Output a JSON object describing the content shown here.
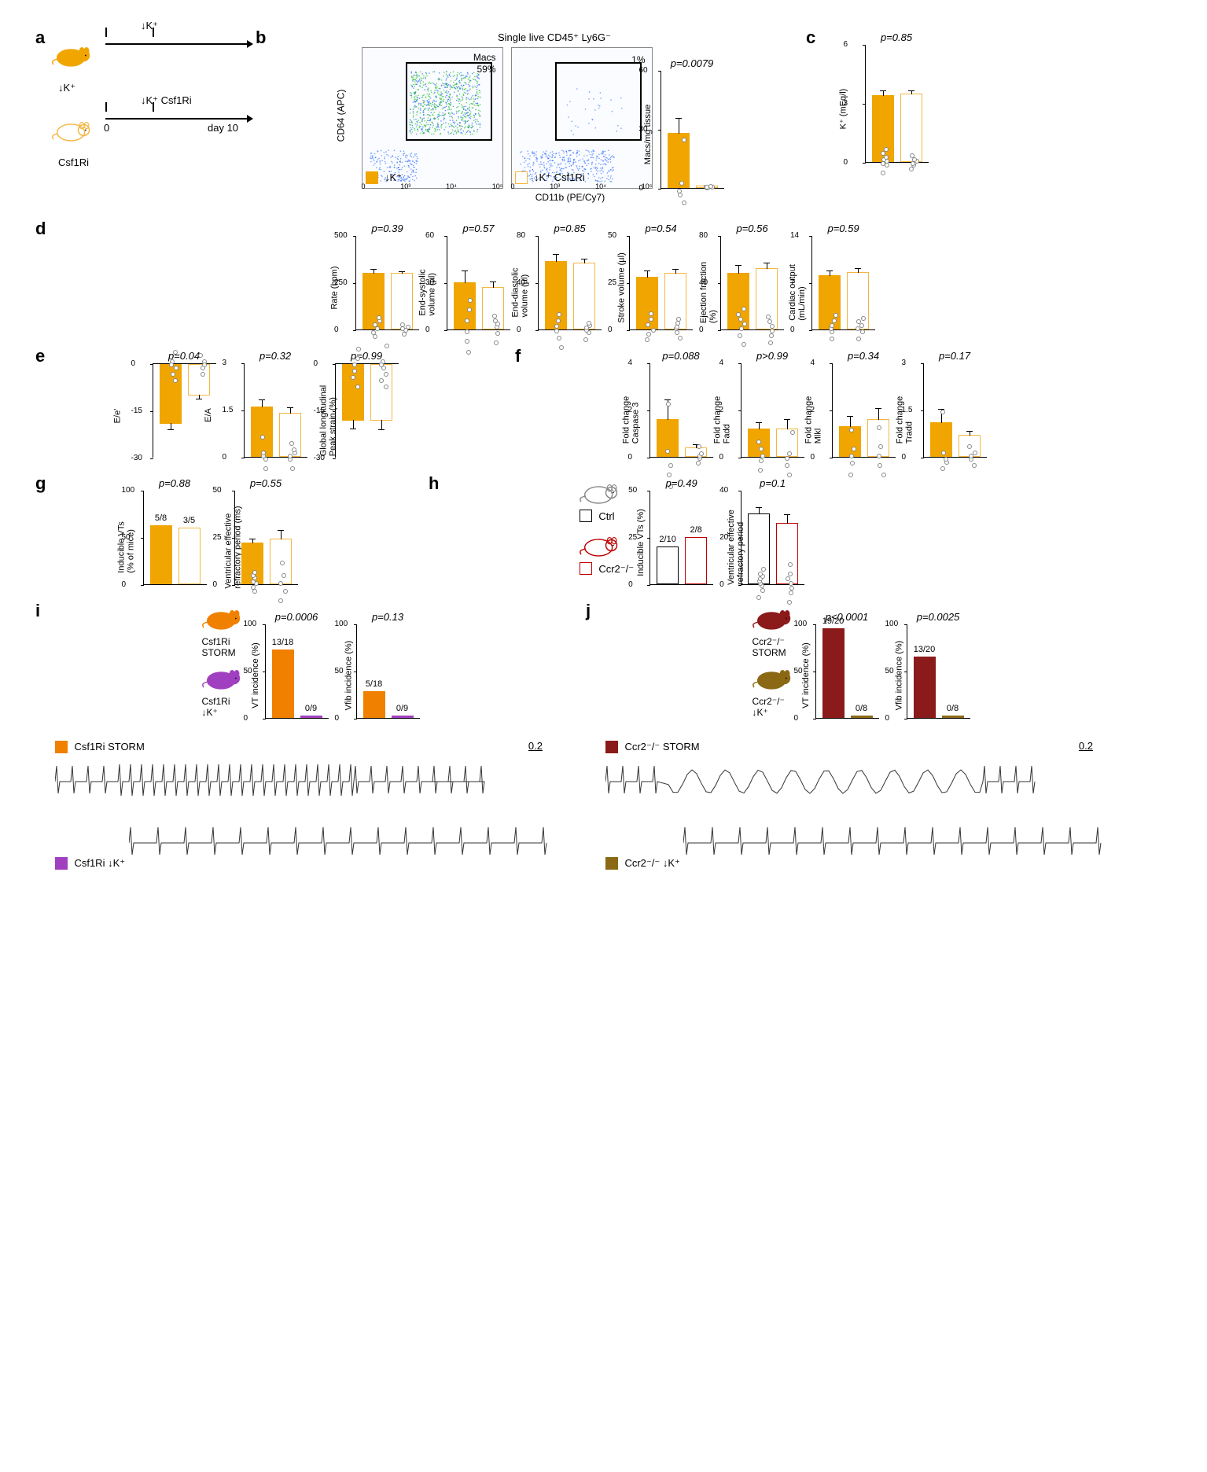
{
  "panels": {
    "a": {
      "label": "a",
      "mice": [
        {
          "color": "#f0a500",
          "treatment_arrow": "↓K⁺",
          "label_below": "↓K⁺"
        },
        {
          "color": "#f5b640",
          "outline": true,
          "treatment_arrow": "↓K⁺ Csf1Ri",
          "label_below": "Csf1Ri"
        }
      ],
      "timeline": {
        "start": "0",
        "end": "day 10"
      }
    },
    "b": {
      "label": "b",
      "title": "Single live CD45⁺ Ly6G⁻",
      "plots": [
        {
          "gate_pct": "59%",
          "gate_label": "Macs",
          "legend_color": "#f0a500",
          "legend_filled": true,
          "legend_text": "↓K⁺"
        },
        {
          "gate_pct": "1%",
          "legend_color": "#f5b640",
          "legend_filled": false,
          "legend_text": "↓K⁺ Csf1Ri"
        }
      ],
      "x_axis": "CD11b (PE/Cy7)",
      "y_axis": "CD64 (APC)",
      "ticks": [
        "0",
        "10³",
        "10⁴",
        "10⁵"
      ],
      "bar_chart": {
        "p": "p=0.0079",
        "ylabel": "Macs/mg tissue",
        "ymax": 60,
        "ticks": [
          0,
          30,
          60
        ],
        "bars": [
          {
            "value": 28,
            "color": "#f0a500",
            "filled": true,
            "points": [
              20,
              24,
              26,
              30,
              52
            ]
          },
          {
            "value": 1,
            "color": "#f5b640",
            "filled": false,
            "points": [
              0.5,
              0.8,
              1,
              1.2,
              1.5
            ]
          }
        ]
      }
    },
    "c": {
      "label": "c",
      "p": "p=0.85",
      "ylabel": "K⁺ (mEq/l)",
      "ymax": 6,
      "ticks": [
        0,
        3,
        6
      ],
      "bars": [
        {
          "value": 3.4,
          "color": "#f0a500",
          "filled": true,
          "points": [
            2.8,
            3.2,
            3.3,
            3.4,
            3.5,
            3.6,
            3.8,
            4.0
          ]
        },
        {
          "value": 3.5,
          "color": "#f5b640",
          "filled": false,
          "points": [
            3.1,
            3.3,
            3.4,
            3.5,
            3.6,
            3.8
          ]
        }
      ]
    },
    "d": {
      "label": "d",
      "charts": [
        {
          "p": "p=0.39",
          "ylabel": "Rate (bpm)",
          "ymax": 500,
          "ticks": [
            0,
            250,
            500
          ],
          "bars": [
            {
              "value": 300,
              "color": "#f0a500",
              "filled": true,
              "points": [
                260,
                280,
                300,
                320,
                340,
                360
              ]
            },
            {
              "value": 300,
              "color": "#f5b640",
              "filled": false,
              "points": [
                270,
                290,
                300,
                310,
                320
              ]
            }
          ]
        },
        {
          "p": "p=0.57",
          "ylabel": "End-systolic\nvolume (µl)",
          "ymax": 60,
          "ticks": [
            0,
            30,
            60
          ],
          "bars": [
            {
              "value": 30,
              "color": "#f0a500",
              "filled": true,
              "points": [
                15,
                22,
                28,
                35,
                42,
                48
              ]
            },
            {
              "value": 27,
              "color": "#f5b640",
              "filled": false,
              "points": [
                18,
                24,
                28,
                30,
                32,
                35
              ]
            }
          ]
        },
        {
          "p": "p=0.85",
          "ylabel": "End-diastolic\nvolume (µl)",
          "ymax": 80,
          "ticks": [
            0,
            40,
            80
          ],
          "bars": [
            {
              "value": 58,
              "color": "#f0a500",
              "filled": true,
              "points": [
                42,
                50,
                56,
                60,
                65,
                70
              ]
            },
            {
              "value": 57,
              "color": "#f5b640",
              "filled": false,
              "points": [
                48,
                54,
                56,
                58,
                60,
                62
              ]
            }
          ]
        },
        {
          "p": "p=0.54",
          "ylabel": "Stroke volume (µl)",
          "ymax": 50,
          "ticks": [
            0,
            25,
            50
          ],
          "bars": [
            {
              "value": 28,
              "color": "#f0a500",
              "filled": true,
              "points": [
                22,
                25,
                27,
                30,
                33,
                36
              ]
            },
            {
              "value": 30,
              "color": "#f5b640",
              "filled": false,
              "points": [
                25,
                28,
                30,
                31,
                33,
                35
              ]
            }
          ]
        },
        {
          "p": "p=0.56",
          "ylabel": "Ejection fraction\n(%)",
          "ymax": 80,
          "ticks": [
            0,
            40,
            80
          ],
          "bars": [
            {
              "value": 48,
              "color": "#f0a500",
              "filled": true,
              "points": [
                35,
                42,
                48,
                52,
                56,
                60,
                65
              ]
            },
            {
              "value": 52,
              "color": "#f5b640",
              "filled": false,
              "points": [
                40,
                46,
                50,
                54,
                58,
                62
              ]
            }
          ]
        },
        {
          "p": "p=0.59",
          "ylabel": "Cardiac output\n(mL/min)",
          "ymax": 14,
          "ticks": [
            0,
            7,
            14
          ],
          "bars": [
            {
              "value": 8,
              "color": "#f0a500",
              "filled": true,
              "points": [
                6.5,
                7.5,
                8,
                8.5,
                9.2,
                10
              ]
            },
            {
              "value": 8.5,
              "color": "#f5b640",
              "filled": false,
              "points": [
                7,
                8,
                8.5,
                9,
                9.5,
                10
              ]
            }
          ]
        }
      ]
    },
    "e": {
      "label": "e",
      "charts": [
        {
          "p": "p=0.04",
          "ylabel": "E/e'",
          "ymin": -30,
          "ymax": 0,
          "ticks": [
            0,
            -15,
            -30
          ],
          "inverted": true,
          "bars": [
            {
              "value": -19,
              "color": "#f0a500",
              "filled": true,
              "points": [
                -15,
                -18,
                -19,
                -20,
                -22,
                -24
              ]
            },
            {
              "value": -10,
              "color": "#f5b640",
              "filled": false,
              "points": [
                -7,
                -9,
                -10,
                -11,
                -13
              ]
            }
          ]
        },
        {
          "p": "p=0.32",
          "ylabel": "E/A",
          "ymax": 3.0,
          "ticks": [
            0,
            1.5,
            3.0
          ],
          "bars": [
            {
              "value": 1.6,
              "color": "#f0a500",
              "filled": true,
              "points": [
                1.2,
                1.5,
                1.6,
                1.7,
                2.2
              ]
            },
            {
              "value": 1.4,
              "color": "#f5b640",
              "filled": false,
              "points": [
                1.0,
                1.3,
                1.4,
                1.5,
                1.6,
                1.8
              ]
            }
          ]
        },
        {
          "p": "p=0.99",
          "ylabel": "Global longitudinal\nPeak strain (%)",
          "ymin": -30,
          "ymax": 0,
          "ticks": [
            0,
            -15,
            -30
          ],
          "inverted": true,
          "bars": [
            {
              "value": -18,
              "color": "#f0a500",
              "filled": true,
              "points": [
                -13,
                -16,
                -18,
                -20,
                -22,
                -25
              ]
            },
            {
              "value": -18,
              "color": "#f5b640",
              "filled": false,
              "points": [
                -12,
                -17,
                -18,
                -19,
                -21,
                -23,
                -25
              ]
            }
          ]
        }
      ]
    },
    "f": {
      "label": "f",
      "charts": [
        {
          "p": "p=0.088",
          "ylabel": "Fold change\nCaspase 3",
          "ymax": 4,
          "ticks": [
            0,
            2,
            4
          ],
          "bars": [
            {
              "value": 1.6,
              "color": "#f0a500",
              "filled": true,
              "points": [
                0.3,
                0.8,
                1.2,
                1.8,
                3.8
              ]
            },
            {
              "value": 0.4,
              "color": "#f5b640",
              "filled": false,
              "points": [
                0.1,
                0.3,
                0.4,
                0.5,
                0.8
              ]
            }
          ]
        },
        {
          "p": "p>0.99",
          "ylabel": "Fold change\nFadd",
          "ymax": 4,
          "ticks": [
            0,
            2,
            4
          ],
          "bars": [
            {
              "value": 1.2,
              "color": "#f0a500",
              "filled": true,
              "points": [
                0.6,
                1.0,
                1.2,
                1.5,
                1.8
              ]
            },
            {
              "value": 1.2,
              "color": "#f5b640",
              "filled": false,
              "points": [
                0.4,
                0.8,
                1.1,
                1.3,
                2.2
              ]
            }
          ]
        },
        {
          "p": "p=0.34",
          "ylabel": "Fold change\nMlkl",
          "ymax": 4,
          "ticks": [
            0,
            2,
            4
          ],
          "bars": [
            {
              "value": 1.3,
              "color": "#f0a500",
              "filled": true,
              "points": [
                0.5,
                1.0,
                1.3,
                1.6,
                2.4
              ]
            },
            {
              "value": 1.6,
              "color": "#f5b640",
              "filled": false,
              "points": [
                0.8,
                1.2,
                1.6,
                2.0,
                2.8
              ]
            }
          ]
        },
        {
          "p": "p=0.17",
          "ylabel": "Fold change\nTradd",
          "ymax": 3.0,
          "ticks": [
            0,
            1.5,
            3.0
          ],
          "bars": [
            {
              "value": 1.1,
              "color": "#f0a500",
              "filled": true,
              "points": [
                0.7,
                0.9,
                1.0,
                1.2,
                2.5
              ]
            },
            {
              "value": 0.7,
              "color": "#f5b640",
              "filled": false,
              "points": [
                0.4,
                0.6,
                0.7,
                0.8,
                1.0
              ]
            }
          ]
        }
      ]
    },
    "g": {
      "label": "g",
      "charts": [
        {
          "p": "p=0.88",
          "ylabel": "Inducible VTs\n(% of mice)",
          "ymax": 100,
          "ticks": [
            0,
            50,
            100
          ],
          "bars": [
            {
              "value": 62.5,
              "color": "#f0a500",
              "filled": true,
              "count": "5/8"
            },
            {
              "value": 60,
              "color": "#f5b640",
              "filled": false,
              "count": "3/5"
            }
          ]
        },
        {
          "p": "p=0.55",
          "ylabel": "Ventricular effective\nrefractory period (ms)",
          "ymax": 50,
          "ticks": [
            0,
            25,
            50
          ],
          "bars": [
            {
              "value": 22,
              "color": "#f0a500",
              "filled": true,
              "points": [
                18,
                20,
                22,
                23,
                25,
                26,
                28
              ]
            },
            {
              "value": 24,
              "color": "#f5b640",
              "filled": false,
              "points": [
                15,
                20,
                24,
                28,
                35
              ]
            }
          ]
        }
      ]
    },
    "h": {
      "label": "h",
      "legend": [
        {
          "color": "#000",
          "filled": false,
          "text": "Ctrl",
          "mouse_color": "#888"
        },
        {
          "color": "#c00000",
          "filled": false,
          "text": "Ccr2⁻/⁻",
          "mouse_color": "#c00000"
        }
      ],
      "charts": [
        {
          "p": "p=0.49",
          "ylabel": "Inducible VTs (%)",
          "ymax": 50,
          "ticks": [
            0,
            25,
            50
          ],
          "bars": [
            {
              "value": 20,
              "color": "#000",
              "filled": false,
              "count": "2/10"
            },
            {
              "value": 25,
              "color": "#c00000",
              "filled": false,
              "count": "2/8"
            }
          ]
        },
        {
          "p": "p=0.1",
          "ylabel": "Ventricular effective\nrefractory period",
          "ymax": 40,
          "ticks": [
            0,
            20,
            40
          ],
          "bars": [
            {
              "value": 30,
              "color": "#000",
              "filled": false,
              "points": [
                24,
                27,
                29,
                30,
                31,
                32,
                33,
                34,
                36
              ]
            },
            {
              "value": 26,
              "color": "#c00000",
              "filled": false,
              "points": [
                18,
                22,
                24,
                26,
                28,
                30,
                34
              ]
            }
          ]
        }
      ]
    },
    "i": {
      "label": "i",
      "mice": [
        {
          "color": "#f08000",
          "label": "Csf1Ri\nSTORM"
        },
        {
          "color": "#a040c0",
          "label": "Csf1Ri\n↓K⁺"
        }
      ],
      "charts": [
        {
          "p": "p=0.0006",
          "ylabel": "VT incidence (%)",
          "ymax": 100,
          "ticks": [
            0,
            50,
            100
          ],
          "bars": [
            {
              "value": 72,
              "color": "#f08000",
              "filled": true,
              "count": "13/18"
            },
            {
              "value": 0,
              "color": "#a040c0",
              "filled": true,
              "count": "0/9"
            }
          ]
        },
        {
          "p": "p=0.13",
          "ylabel": "Vfib incidence (%)",
          "ymax": 100,
          "ticks": [
            0,
            50,
            100
          ],
          "bars": [
            {
              "value": 28,
              "color": "#f08000",
              "filled": true,
              "count": "5/18"
            },
            {
              "value": 0,
              "color": "#a040c0",
              "filled": true,
              "count": "0/9"
            }
          ]
        }
      ],
      "traces": [
        {
          "color": "#f08000",
          "label": "Csf1Ri STORM",
          "arrhythmic": true
        },
        {
          "color": "#a040c0",
          "label": "Csf1Ri ↓K⁺",
          "arrhythmic": false
        }
      ],
      "scale": "0.2"
    },
    "j": {
      "label": "j",
      "mice": [
        {
          "color": "#8b1a1a",
          "label": "Ccr2⁻/⁻\nSTORM"
        },
        {
          "color": "#8b6914",
          "label": "Ccr2⁻/⁻\n↓K⁺"
        }
      ],
      "charts": [
        {
          "p": "p<0.0001",
          "ylabel": "VT incidence (%)",
          "ymax": 100,
          "ticks": [
            0,
            50,
            100
          ],
          "bars": [
            {
              "value": 95,
              "color": "#8b1a1a",
              "filled": true,
              "count": "19/20"
            },
            {
              "value": 0,
              "color": "#8b6914",
              "filled": true,
              "count": "0/8"
            }
          ]
        },
        {
          "p": "p=0.0025",
          "ylabel": "Vfib incidence (%)",
          "ymax": 100,
          "ticks": [
            0,
            50,
            100
          ],
          "bars": [
            {
              "value": 65,
              "color": "#8b1a1a",
              "filled": true,
              "count": "13/20"
            },
            {
              "value": 0,
              "color": "#8b6914",
              "filled": true,
              "count": "0/8"
            }
          ]
        }
      ],
      "traces": [
        {
          "color": "#8b1a1a",
          "label": "Ccr2⁻/⁻ STORM",
          "arrhythmic": true,
          "dense": true
        },
        {
          "color": "#8b6914",
          "label": "Ccr2⁻/⁻ ↓K⁺",
          "arrhythmic": false
        }
      ],
      "scale": "0.2"
    }
  },
  "colors": {
    "lowK": "#f0a500",
    "csf1ri": "#f5b640",
    "ctrl": "#000000",
    "ccr2": "#c00000",
    "csf1ri_storm": "#f08000",
    "csf1ri_lowk": "#a040c0",
    "ccr2_storm": "#8b1a1a",
    "ccr2_lowk": "#8b6914"
  }
}
